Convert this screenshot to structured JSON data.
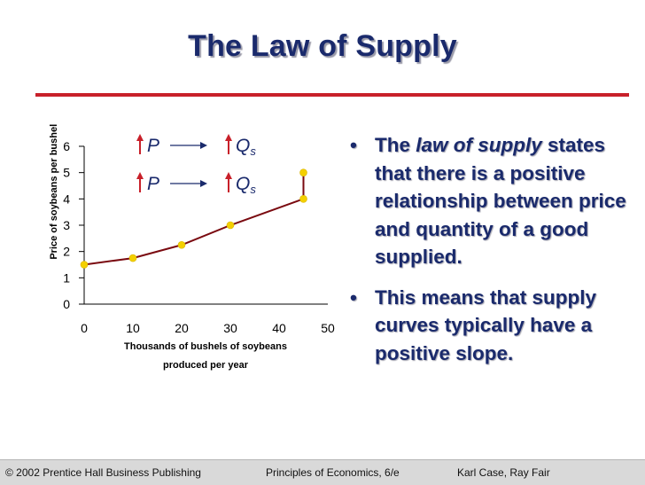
{
  "title": "The Law of Supply",
  "chart_data": {
    "type": "line",
    "ylabel": "Price of soybeans per bushel ($)",
    "xlabel_lines": [
      "Thousands of bushels of soybeans",
      "produced per year"
    ],
    "xlim": [
      0,
      50
    ],
    "ylim": [
      0,
      6
    ],
    "x_ticks": [
      "0",
      "10",
      "20",
      "30",
      "40",
      "50"
    ],
    "y_ticks": [
      "0",
      "1",
      "2",
      "3",
      "4",
      "5",
      "6"
    ],
    "grid": false,
    "series": [
      {
        "x": [
          0,
          10,
          20,
          30,
          45,
          45
        ],
        "y": [
          1.5,
          1.75,
          2.25,
          3.0,
          4.0,
          5.0
        ]
      }
    ],
    "colors": {
      "line": "#7a0a10",
      "point": "#f4d000",
      "axis": "#000000",
      "arrow": "#c8202a",
      "text": "#1a2a6c"
    },
    "annotations": [
      {
        "left_symbol": "P",
        "right_symbol": "Q",
        "right_subscript": "s"
      },
      {
        "left_symbol": "P",
        "right_symbol": "Q",
        "right_subscript": "s"
      }
    ]
  },
  "bullets": {
    "marker": "•",
    "b1_prefix": "The ",
    "b1_emph": "law of supply",
    "b1_rest": " states that there is a positive relationship between price and quantity of a good supplied.",
    "b2": "This means that supply curves typically have a positive slope."
  },
  "footer": {
    "left": "© 2002 Prentice Hall Business Publishing",
    "center": "Principles of Economics, 6/e",
    "right": "Karl Case, Ray Fair"
  }
}
